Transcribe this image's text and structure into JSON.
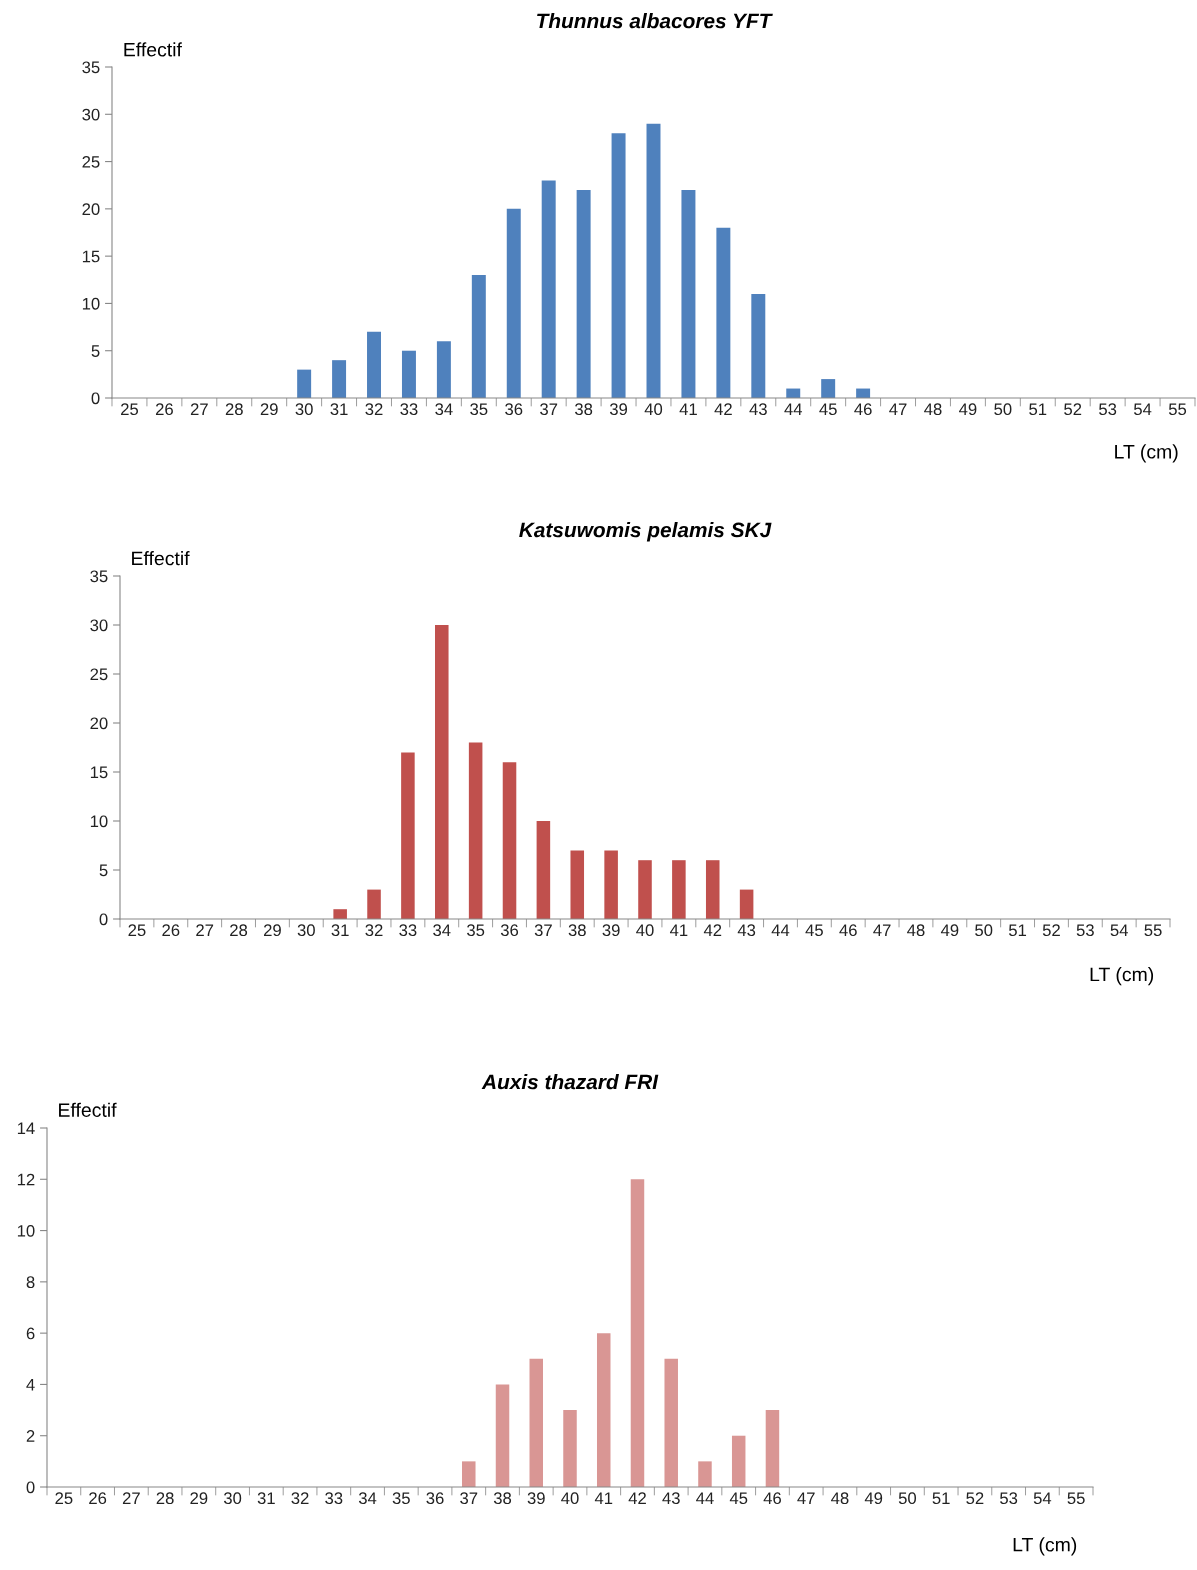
{
  "chart_data": [
    {
      "type": "bar",
      "title": "Thunnus albacores YFT",
      "xlabel": "LT (cm)",
      "ylabel": "Effectif",
      "categories": [
        "25",
        "26",
        "27",
        "28",
        "29",
        "30",
        "31",
        "32",
        "33",
        "34",
        "35",
        "36",
        "37",
        "38",
        "39",
        "40",
        "41",
        "42",
        "43",
        "44",
        "45",
        "46",
        "47",
        "48",
        "49",
        "50",
        "51",
        "52",
        "53",
        "54",
        "55"
      ],
      "values": [
        0,
        0,
        0,
        0,
        0,
        3,
        4,
        7,
        5,
        6,
        13,
        20,
        23,
        22,
        28,
        29,
        22,
        18,
        11,
        1,
        2,
        1,
        0,
        0,
        0,
        0,
        0,
        0,
        0,
        0,
        0
      ],
      "color": "#4f81bd",
      "ylim": [
        0,
        35
      ],
      "yticks": [
        0,
        5,
        10,
        15,
        20,
        25,
        30,
        35
      ],
      "grid": false,
      "legend": false
    },
    {
      "type": "bar",
      "title": "Katsuwomis pelamis SKJ",
      "xlabel": "LT (cm)",
      "ylabel": "Effectif",
      "categories": [
        "25",
        "26",
        "27",
        "28",
        "29",
        "30",
        "31",
        "32",
        "33",
        "34",
        "35",
        "36",
        "37",
        "38",
        "39",
        "40",
        "41",
        "42",
        "43",
        "44",
        "45",
        "46",
        "47",
        "48",
        "49",
        "50",
        "51",
        "52",
        "53",
        "54",
        "55"
      ],
      "values": [
        0,
        0,
        0,
        0,
        0,
        0,
        1,
        3,
        17,
        30,
        18,
        16,
        10,
        7,
        7,
        6,
        6,
        6,
        3,
        0,
        0,
        0,
        0,
        0,
        0,
        0,
        0,
        0,
        0,
        0,
        0
      ],
      "color": "#c0504d",
      "ylim": [
        0,
        35
      ],
      "yticks": [
        0,
        5,
        10,
        15,
        20,
        25,
        30,
        35
      ],
      "grid": false,
      "legend": false
    },
    {
      "type": "bar",
      "title": "Auxis thazard FRI",
      "xlabel": "LT (cm)",
      "ylabel": "Effectif",
      "categories": [
        "25",
        "26",
        "27",
        "28",
        "29",
        "30",
        "31",
        "32",
        "33",
        "34",
        "35",
        "36",
        "37",
        "38",
        "39",
        "40",
        "41",
        "42",
        "43",
        "44",
        "45",
        "46",
        "47",
        "48",
        "49",
        "50",
        "51",
        "52",
        "53",
        "54",
        "55"
      ],
      "values": [
        0,
        0,
        0,
        0,
        0,
        0,
        0,
        0,
        0,
        0,
        0,
        0,
        1,
        4,
        5,
        3,
        6,
        12,
        5,
        1,
        2,
        3,
        0,
        0,
        0,
        0,
        0,
        0,
        0,
        0,
        0
      ],
      "color": "#d99694",
      "ylim": [
        0,
        14
      ],
      "yticks": [
        0,
        2,
        4,
        6,
        8,
        10,
        12,
        14
      ],
      "grid": false,
      "legend": false
    }
  ]
}
